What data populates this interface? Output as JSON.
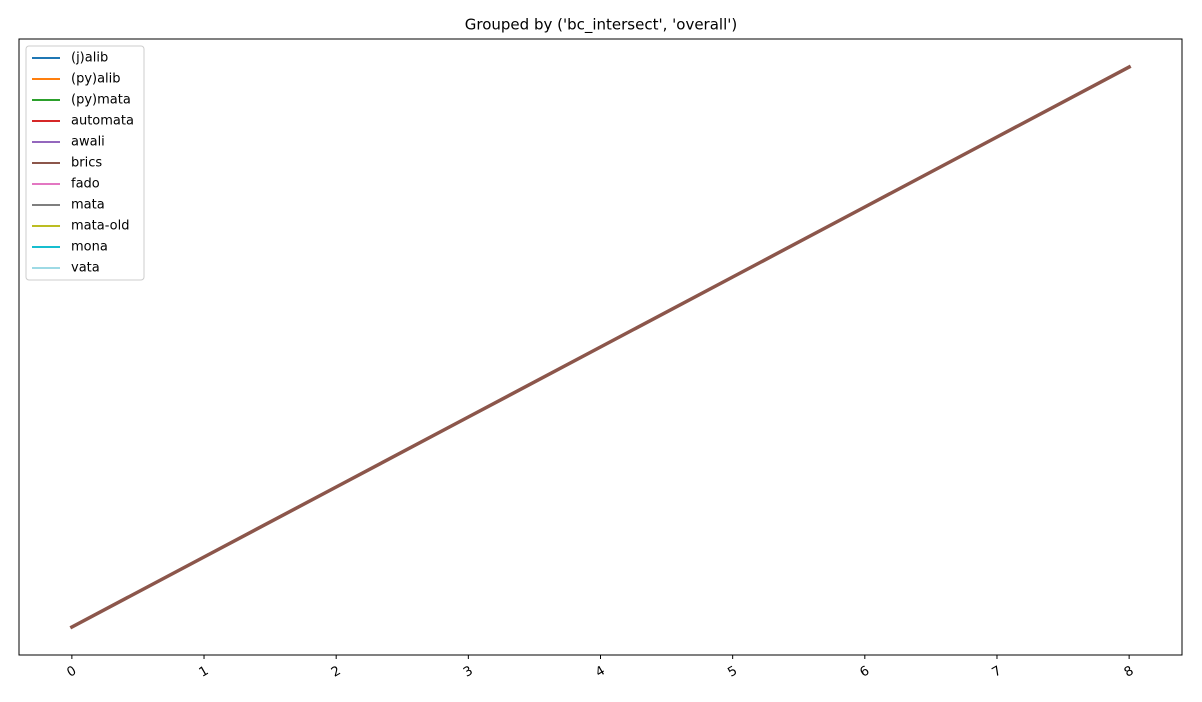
{
  "chart_data": {
    "type": "line",
    "title": "Grouped by ('bc_intersect', 'overall')",
    "x": [
      0,
      1,
      2,
      3,
      4,
      5,
      6,
      7,
      8
    ],
    "series": [
      {
        "name": "(j)alib",
        "color": "#1f77b4",
        "values": [
          null,
          null,
          null,
          null,
          null,
          null,
          null,
          null,
          null
        ]
      },
      {
        "name": "(py)alib",
        "color": "#ff7f0e",
        "values": [
          null,
          null,
          null,
          null,
          null,
          null,
          null,
          null,
          null
        ]
      },
      {
        "name": "(py)mata",
        "color": "#2ca02c",
        "values": [
          null,
          null,
          null,
          null,
          null,
          null,
          null,
          null,
          null
        ]
      },
      {
        "name": "automata",
        "color": "#d62728",
        "values": [
          null,
          null,
          null,
          null,
          null,
          null,
          null,
          null,
          null
        ]
      },
      {
        "name": "awali",
        "color": "#9467bd",
        "values": [
          null,
          null,
          null,
          null,
          null,
          null,
          null,
          null,
          null
        ]
      },
      {
        "name": "brics",
        "color": "#8c564b",
        "values": [
          0,
          1,
          2,
          3,
          4,
          5,
          6,
          7,
          8
        ]
      },
      {
        "name": "fado",
        "color": "#e377c2",
        "values": [
          null,
          null,
          null,
          null,
          null,
          null,
          null,
          null,
          null
        ]
      },
      {
        "name": "mata",
        "color": "#7f7f7f",
        "values": [
          null,
          null,
          null,
          null,
          null,
          null,
          null,
          null,
          null
        ]
      },
      {
        "name": "mata-old",
        "color": "#bcbd22",
        "values": [
          null,
          null,
          null,
          null,
          null,
          null,
          null,
          null,
          null
        ]
      },
      {
        "name": "mona",
        "color": "#17becf",
        "values": [
          null,
          null,
          null,
          null,
          null,
          null,
          null,
          null,
          null
        ]
      },
      {
        "name": "vata",
        "color": "#9edae5",
        "values": [
          null,
          null,
          null,
          null,
          null,
          null,
          null,
          null,
          null
        ]
      }
    ],
    "xlim": [
      -0.4,
      8.4
    ],
    "ylim": [
      -0.4,
      8.4
    ],
    "xticks": [
      0,
      1,
      2,
      3,
      4,
      5,
      6,
      7,
      8
    ],
    "legend": "upper-left"
  }
}
